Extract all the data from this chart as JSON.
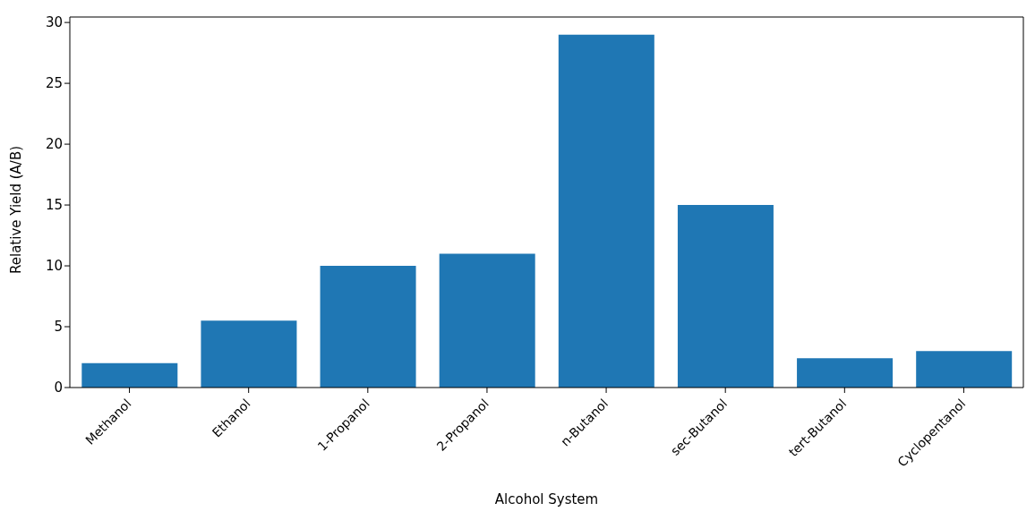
{
  "chart_data": {
    "type": "bar",
    "xlabel": "Alcohol System",
    "ylabel": "Relative Yield (A/B)",
    "categories": [
      "Methanol",
      "Ethanol",
      "1-Propanol",
      "2-Propanol",
      "n-Butanol",
      "sec-Butanol",
      "tert-Butanol",
      "Cyclopentanol"
    ],
    "values": [
      2,
      5.5,
      10,
      11,
      29,
      15,
      2.4,
      3
    ],
    "color": "#1f77b4",
    "ylim": [
      0,
      30.45
    ],
    "yticks": [
      0,
      5,
      10,
      15,
      20,
      25,
      30
    ],
    "grid": false,
    "legend": false
  }
}
